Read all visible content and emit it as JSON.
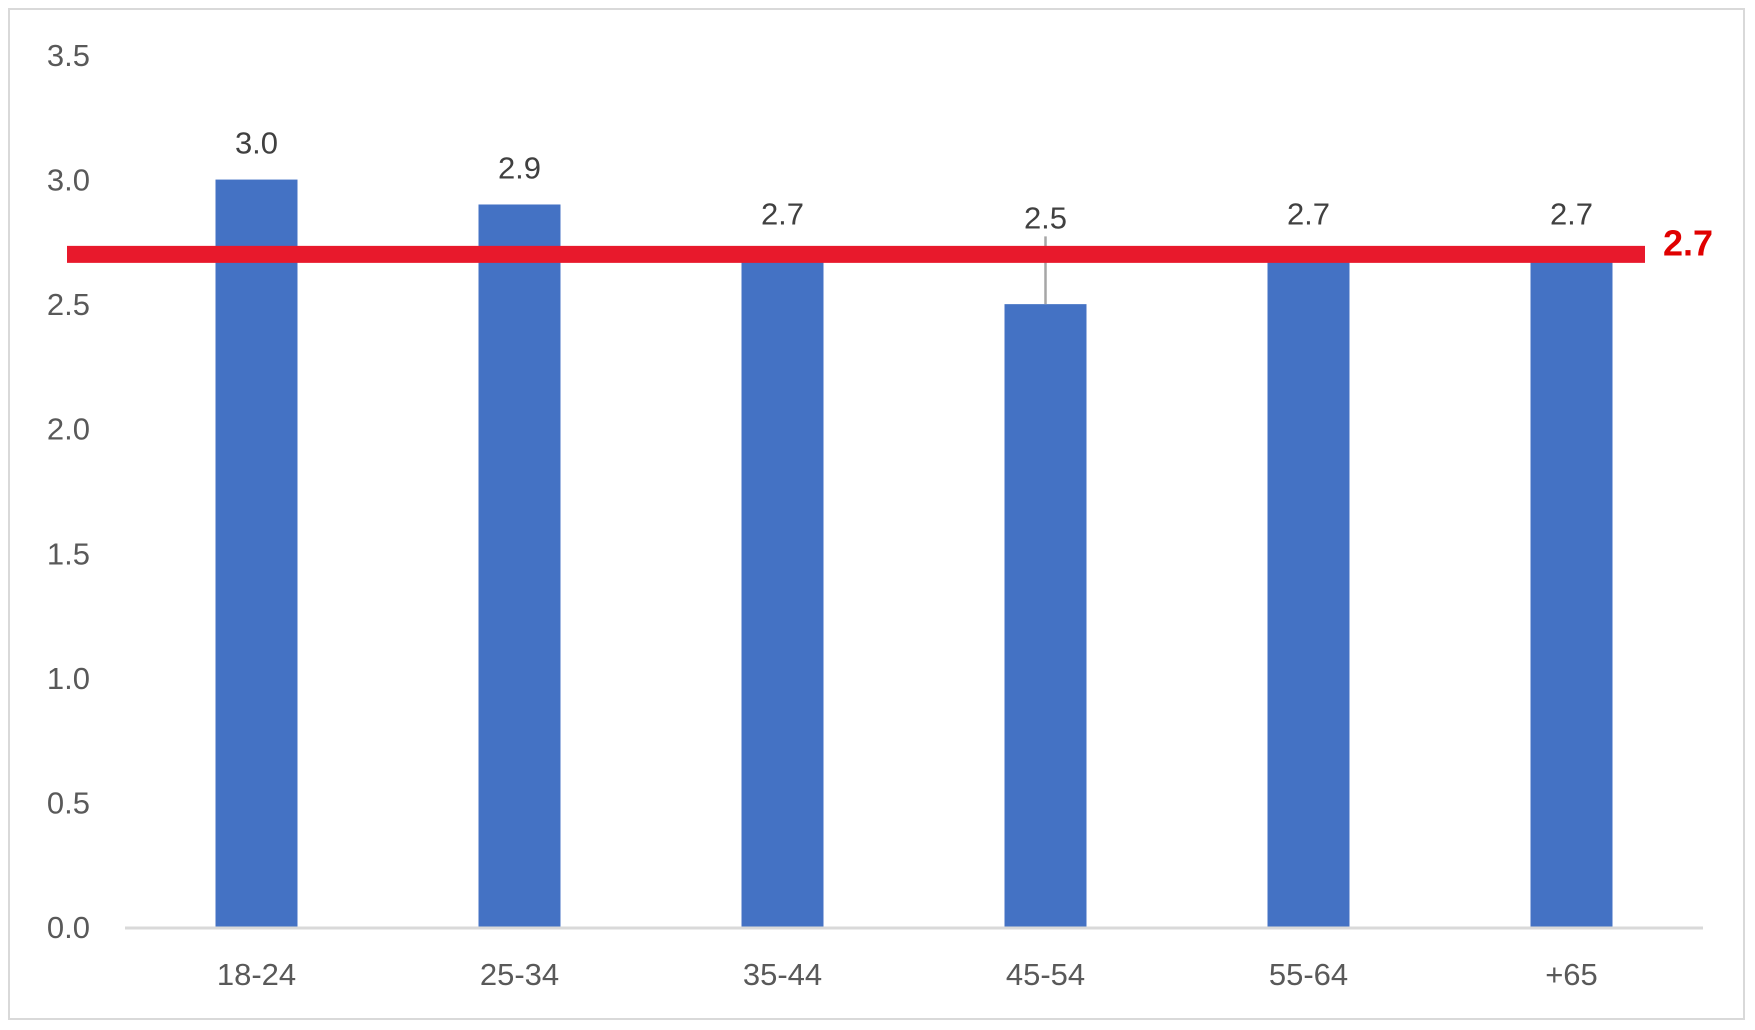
{
  "chart_data": {
    "type": "bar",
    "categories": [
      "18-24",
      "25-34",
      "35-44",
      "45-54",
      "55-64",
      "+65"
    ],
    "values": [
      3.0,
      2.9,
      2.7,
      2.5,
      2.7,
      2.7
    ],
    "data_labels": [
      "3.0",
      "2.9",
      "2.7",
      "2.5",
      "2.7",
      "2.7"
    ],
    "y_ticks": [
      "0.0",
      "0.5",
      "1.0",
      "1.5",
      "2.0",
      "2.5",
      "3.0",
      "3.5"
    ],
    "ylim": [
      0,
      3.5
    ],
    "reference_line": {
      "value": 2.7,
      "label": "2.7"
    },
    "grid": false,
    "title": "",
    "xlabel": "",
    "ylabel": "",
    "colors": {
      "bar": "#4472c4",
      "reference_line": "#e8192c",
      "reference_label": "#e00000",
      "axis": "#d9d9d9",
      "error_bar": "#a6a6a6"
    }
  }
}
